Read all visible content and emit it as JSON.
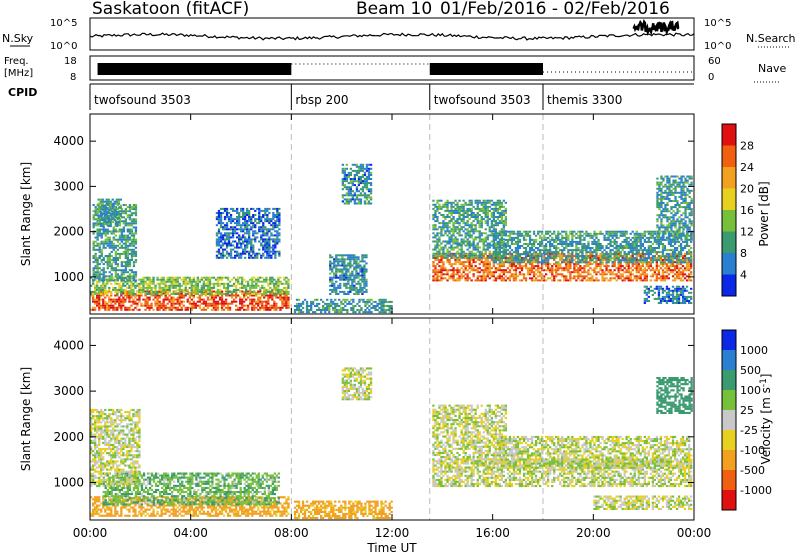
{
  "header": {
    "site_title": "Saskatoon (fitACF)",
    "beam": "Beam 10",
    "date_range": "01/Feb/2016 - 02/Feb/2016"
  },
  "nsky_panel": {
    "left_label": "N.Sky",
    "left_ticks": [
      "10^5",
      "10^0"
    ],
    "right_ticks": [
      "10^5",
      "10^0"
    ],
    "right_label": "N.Search"
  },
  "freq_panel": {
    "left_label_line1": "Freq.",
    "left_label_line2": "[MHz]",
    "left_ticks": [
      "18",
      "8"
    ],
    "right_ticks": [
      "60",
      "0"
    ],
    "right_label": "Nave"
  },
  "cpid_panel": {
    "label": "CPID",
    "segments": [
      {
        "name": "twofsound 3503",
        "start_hour": 0.0,
        "end_hour": 8.0
      },
      {
        "name": "rbsp 200",
        "start_hour": 8.0,
        "end_hour": 13.5
      },
      {
        "name": "twofsound 3503",
        "start_hour": 13.5,
        "end_hour": 18.0
      },
      {
        "name": "themis 3300",
        "start_hour": 18.0,
        "end_hour": 24.0
      }
    ]
  },
  "x_axis": {
    "label": "Time UT",
    "ticks": [
      "00:00",
      "04:00",
      "08:00",
      "12:00",
      "16:00",
      "20:00",
      "00:00"
    ]
  },
  "chart_data": [
    {
      "type": "heatmap",
      "ylabel": "Slant Range [km]",
      "y_ticks": [
        "1000",
        "2000",
        "3000",
        "4000"
      ],
      "xlim_hours": [
        0,
        24
      ],
      "ylim_km": [
        180,
        4600
      ],
      "colorbar": {
        "label": "Power [dB]",
        "ticks": [
          "4",
          "8",
          "12",
          "16",
          "20",
          "24",
          "28"
        ],
        "range": [
          0,
          32
        ],
        "colors": [
          "#0a28e6",
          "#2a7fd0",
          "#3a9a70",
          "#76c03a",
          "#e8d020",
          "#f2a020",
          "#f06010",
          "#e01010"
        ]
      },
      "regions": [
        {
          "t0": 0.0,
          "t1": 7.9,
          "r0": 250,
          "r1": 700,
          "power": 27
        },
        {
          "t0": 0.0,
          "t1": 7.9,
          "r0": 600,
          "r1": 1000,
          "power": 14
        },
        {
          "t0": 0.1,
          "t1": 1.8,
          "r0": 900,
          "r1": 2600,
          "power": 10
        },
        {
          "t0": 0.3,
          "t1": 1.2,
          "r0": 2100,
          "r1": 2700,
          "power": 9
        },
        {
          "t0": 5.0,
          "t1": 7.5,
          "r0": 1400,
          "r1": 2500,
          "power": 6
        },
        {
          "t0": 8.1,
          "t1": 12.0,
          "r0": 200,
          "r1": 500,
          "power": 9
        },
        {
          "t0": 9.5,
          "t1": 11.0,
          "r0": 600,
          "r1": 1500,
          "power": 8
        },
        {
          "t0": 10.0,
          "t1": 11.2,
          "r0": 2600,
          "r1": 3500,
          "power": 8
        },
        {
          "t0": 13.6,
          "t1": 23.9,
          "r0": 900,
          "r1": 1500,
          "power": 25
        },
        {
          "t0": 13.6,
          "t1": 16.5,
          "r0": 1400,
          "r1": 2700,
          "power": 10
        },
        {
          "t0": 16.0,
          "t1": 23.9,
          "r0": 1300,
          "r1": 2000,
          "power": 9
        },
        {
          "t0": 22.5,
          "t1": 23.9,
          "r0": 1800,
          "r1": 3200,
          "power": 9
        },
        {
          "t0": 22.0,
          "t1": 23.9,
          "r0": 400,
          "r1": 800,
          "power": 7
        }
      ]
    },
    {
      "type": "heatmap",
      "ylabel": "Slant Range [km]",
      "y_ticks": [
        "1000",
        "2000",
        "3000",
        "4000"
      ],
      "xlim_hours": [
        0,
        24
      ],
      "ylim_km": [
        180,
        4600
      ],
      "colorbar": {
        "label": "Velocity [m s^-1]",
        "ticks": [
          "1000",
          "500",
          "100",
          "25",
          "-25",
          "-100",
          "-500",
          "-1000"
        ],
        "colors": [
          "#0a28e6",
          "#2a7fd0",
          "#3a9a70",
          "#76c03a",
          "#c8c8c8",
          "#e8d020",
          "#f2a020",
          "#f06010",
          "#e01010"
        ]
      },
      "regions": [
        {
          "t0": 0.0,
          "t1": 7.9,
          "r0": 250,
          "r1": 700,
          "velocity": -150
        },
        {
          "t0": 0.5,
          "t1": 7.5,
          "r0": 500,
          "r1": 1200,
          "velocity": 80
        },
        {
          "t0": 0.0,
          "t1": 2.0,
          "r0": 900,
          "r1": 2600,
          "velocity": 0
        },
        {
          "t0": 8.1,
          "t1": 12.0,
          "r0": 200,
          "r1": 600,
          "velocity": -150
        },
        {
          "t0": 10.0,
          "t1": 11.2,
          "r0": 2800,
          "r1": 3500,
          "velocity": 0
        },
        {
          "t0": 13.6,
          "t1": 23.9,
          "r0": 900,
          "r1": 1500,
          "velocity": 0
        },
        {
          "t0": 13.6,
          "t1": 16.5,
          "r0": 1400,
          "r1": 2700,
          "velocity": 0
        },
        {
          "t0": 16.0,
          "t1": 23.9,
          "r0": 1300,
          "r1": 2000,
          "velocity": 0
        },
        {
          "t0": 22.5,
          "t1": 23.9,
          "r0": 2500,
          "r1": 3300,
          "velocity": 200
        },
        {
          "t0": 20.0,
          "t1": 23.9,
          "r0": 400,
          "r1": 700,
          "velocity": 0
        }
      ]
    }
  ]
}
